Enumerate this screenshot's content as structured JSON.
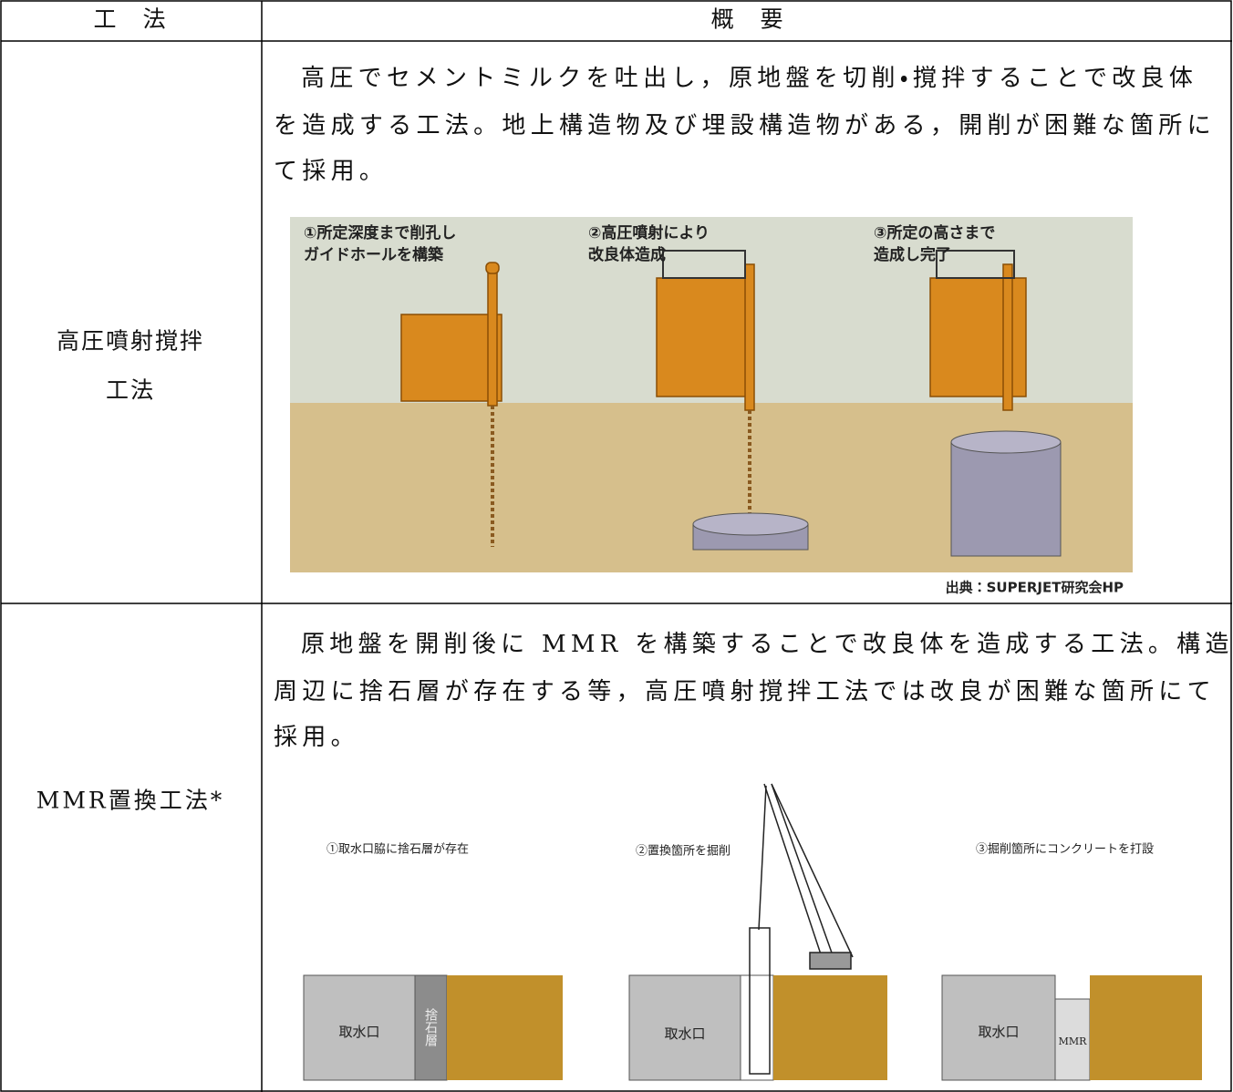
{
  "table": {
    "header": [
      "工　法",
      "概　要"
    ],
    "rows": [
      {
        "method": [
          "高圧噴射撹拌",
          "工法"
        ],
        "description": [
          "高圧でセメントミルクを吐出し，原地盤を切削・撹拌することで改良体",
          "を造成する工法。地上構造物及び埋設構造物がある，開削が困難な箇所に",
          "て採用。"
        ],
        "figure": {
          "steps": [
            [
              "①所定深度まで削孔し",
              "ガイドホールを構築"
            ],
            [
              "②高圧噴射により",
              "改良体造成"
            ],
            [
              "③所定の高さまで",
              "造成し完了"
            ]
          ],
          "source": "出典：SUPERJET研究会HP"
        }
      },
      {
        "method": [
          "MMR置換工法*"
        ],
        "description": [
          "原地盤を開削後に MMR を構築することで改良体を造成する工法。構造物",
          "周辺に捨石層が存在する等，高圧噴射撹拌工法では改良が困難な箇所にて",
          "採用。"
        ],
        "figure": {
          "steps": [
            "①取水口脇に捨石層が存在",
            "②置換箇所を掘削",
            "③掘削箇所にコンクリートを打設"
          ],
          "intake": [
            "取水口",
            "取水口",
            "取水口"
          ],
          "rubble": "捨石層",
          "mmr": "MMR"
        }
      }
    ]
  }
}
